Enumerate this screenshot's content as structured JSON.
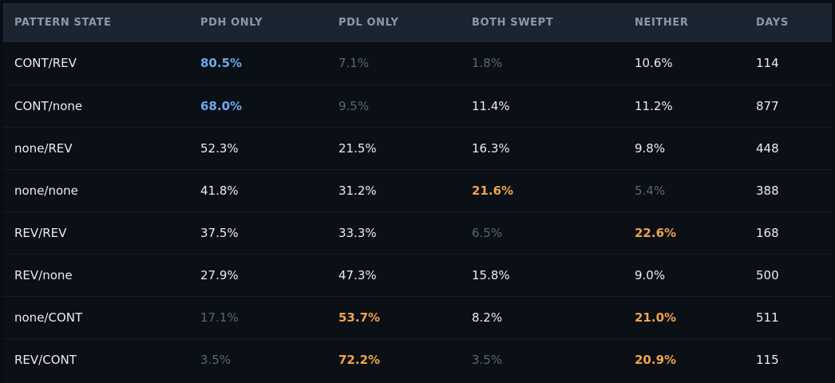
{
  "colors": {
    "background": "#0a0e14",
    "header_bg": "#1b2532",
    "header_text": "#8b98a8",
    "text": "#e8edf3",
    "blue": "#6ea8ee",
    "orange": "#f0a34a",
    "dim": "#5c6675"
  },
  "table": {
    "headers": [
      "PATTERN STATE",
      "PDH ONLY",
      "PDL ONLY",
      "BOTH SWEPT",
      "NEITHER",
      "DAYS"
    ],
    "rows": [
      {
        "cells": [
          {
            "text": "CONT/REV",
            "style": "normal"
          },
          {
            "text": "80.5%",
            "style": "blue"
          },
          {
            "text": "7.1%",
            "style": "dim"
          },
          {
            "text": "1.8%",
            "style": "dim"
          },
          {
            "text": "10.6%",
            "style": "normal"
          },
          {
            "text": "114",
            "style": "normal"
          }
        ]
      },
      {
        "cells": [
          {
            "text": "CONT/none",
            "style": "normal"
          },
          {
            "text": "68.0%",
            "style": "blue"
          },
          {
            "text": "9.5%",
            "style": "dim"
          },
          {
            "text": "11.4%",
            "style": "normal"
          },
          {
            "text": "11.2%",
            "style": "normal"
          },
          {
            "text": "877",
            "style": "normal"
          }
        ]
      },
      {
        "cells": [
          {
            "text": "none/REV",
            "style": "normal"
          },
          {
            "text": "52.3%",
            "style": "normal"
          },
          {
            "text": "21.5%",
            "style": "normal"
          },
          {
            "text": "16.3%",
            "style": "normal"
          },
          {
            "text": "9.8%",
            "style": "normal"
          },
          {
            "text": "448",
            "style": "normal"
          }
        ]
      },
      {
        "cells": [
          {
            "text": "none/none",
            "style": "normal"
          },
          {
            "text": "41.8%",
            "style": "normal"
          },
          {
            "text": "31.2%",
            "style": "normal"
          },
          {
            "text": "21.6%",
            "style": "orange"
          },
          {
            "text": "5.4%",
            "style": "dim"
          },
          {
            "text": "388",
            "style": "normal"
          }
        ]
      },
      {
        "cells": [
          {
            "text": "REV/REV",
            "style": "normal"
          },
          {
            "text": "37.5%",
            "style": "normal"
          },
          {
            "text": "33.3%",
            "style": "normal"
          },
          {
            "text": "6.5%",
            "style": "dim"
          },
          {
            "text": "22.6%",
            "style": "orange"
          },
          {
            "text": "168",
            "style": "normal"
          }
        ]
      },
      {
        "cells": [
          {
            "text": "REV/none",
            "style": "normal"
          },
          {
            "text": "27.9%",
            "style": "normal"
          },
          {
            "text": "47.3%",
            "style": "normal"
          },
          {
            "text": "15.8%",
            "style": "normal"
          },
          {
            "text": "9.0%",
            "style": "normal"
          },
          {
            "text": "500",
            "style": "normal"
          }
        ]
      },
      {
        "cells": [
          {
            "text": "none/CONT",
            "style": "normal"
          },
          {
            "text": "17.1%",
            "style": "dim"
          },
          {
            "text": "53.7%",
            "style": "orange"
          },
          {
            "text": "8.2%",
            "style": "normal"
          },
          {
            "text": "21.0%",
            "style": "orange"
          },
          {
            "text": "511",
            "style": "normal"
          }
        ]
      },
      {
        "cells": [
          {
            "text": "REV/CONT",
            "style": "normal"
          },
          {
            "text": "3.5%",
            "style": "dim"
          },
          {
            "text": "72.2%",
            "style": "orange"
          },
          {
            "text": "3.5%",
            "style": "dim"
          },
          {
            "text": "20.9%",
            "style": "orange"
          },
          {
            "text": "115",
            "style": "normal"
          }
        ]
      }
    ]
  }
}
